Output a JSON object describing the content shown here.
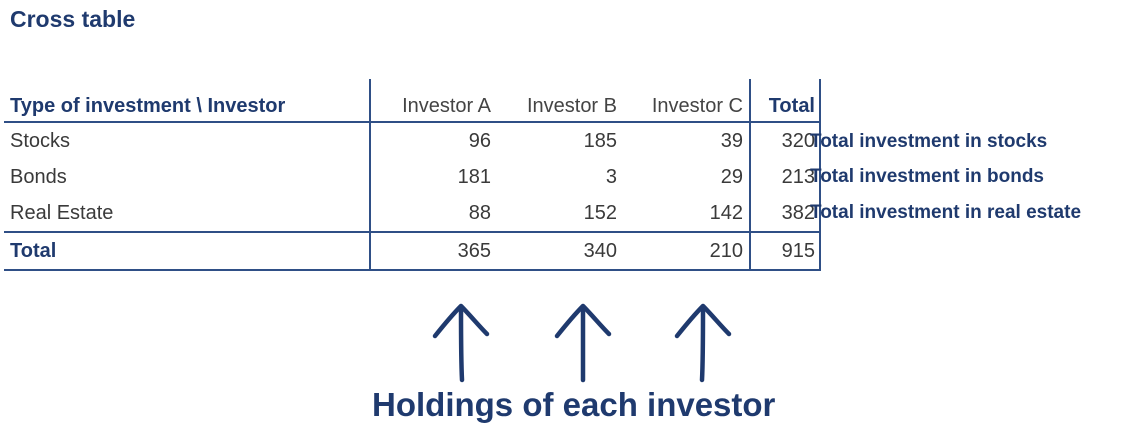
{
  "title": "Cross table",
  "table": {
    "header": {
      "type_label": "Type of investment \\ Investor",
      "investors": [
        "Investor A",
        "Investor B",
        "Investor C"
      ],
      "total_label": "Total"
    },
    "rows": [
      {
        "label": "Stocks",
        "values": [
          "96",
          "185",
          "39"
        ],
        "total": "320"
      },
      {
        "label": "Bonds",
        "values": [
          "181",
          "3",
          "29"
        ],
        "total": "213"
      },
      {
        "label": "Real Estate",
        "values": [
          "88",
          "152",
          "142"
        ],
        "total": "382"
      }
    ],
    "totals": {
      "label": "Total",
      "values": [
        "365",
        "340",
        "210"
      ],
      "total": "915"
    }
  },
  "row_notes": [
    "Total investment in stocks",
    "Total investment in bonds",
    "Total investment in real estate"
  ],
  "caption": "Holdings of each investor",
  "colors": {
    "heading": "#1f3a6e",
    "rule": "#2f4f86",
    "body_text": "#3a3a3a"
  },
  "icons": [
    "up-arrow-icon",
    "up-arrow-icon",
    "up-arrow-icon"
  ]
}
